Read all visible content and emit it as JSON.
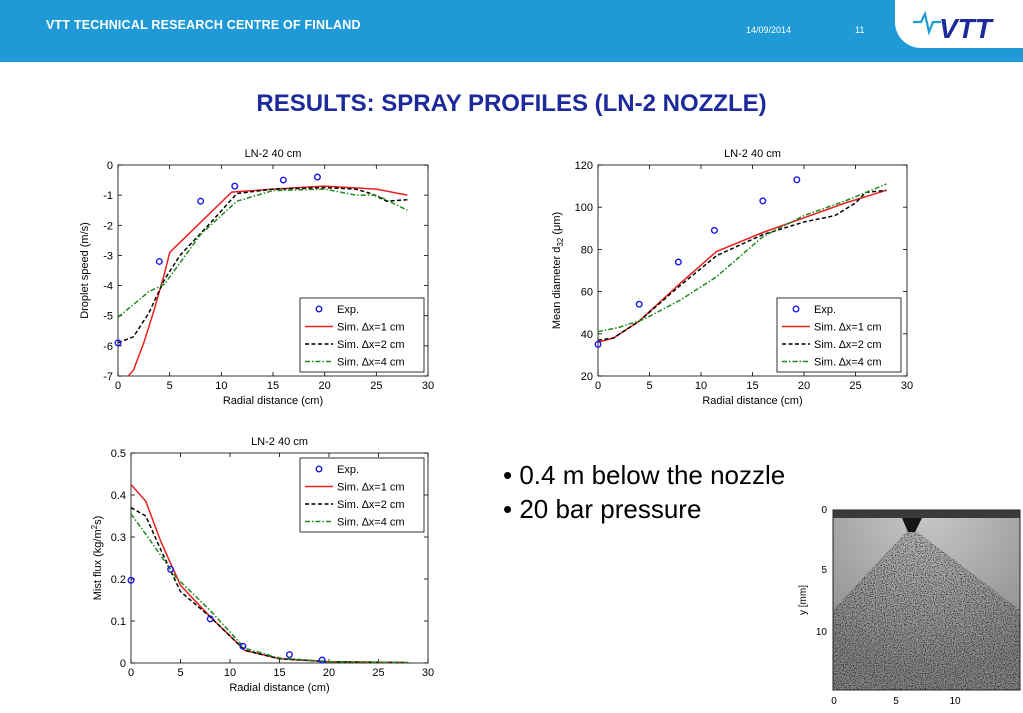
{
  "header": {
    "org": "VTT TECHNICAL RESEARCH CENTRE OF FINLAND",
    "date": "14/09/2014",
    "page": "11",
    "logo_text": "VTT",
    "colors": {
      "bar": "#1f9ad6",
      "title": "#1c2a9c"
    }
  },
  "slide_title": "RESULTS: SPRAY PROFILES (LN-2 NOZZLE)",
  "legend": {
    "exp": "Exp.",
    "sim1": "Sim. ∆x=1 cm",
    "sim2": "Sim. ∆x=2 cm",
    "sim4": "Sim. ∆x=4 cm"
  },
  "series_colors": {
    "exp": "#1a1ae6",
    "sim1": "#e8211f",
    "sim2": "#000000",
    "sim4": "#1c8a1c"
  },
  "bullets": [
    "0.4 m below the nozzle",
    "20 bar pressure"
  ],
  "chart_data": [
    {
      "type": "line",
      "title": "LN-2 40 cm",
      "xlabel": "Radial distance (cm)",
      "ylabel": "Droplet speed (m/s)",
      "xlim": [
        0,
        30
      ],
      "ylim": [
        -7,
        0
      ],
      "xticks": [
        0,
        5,
        10,
        15,
        20,
        25,
        30
      ],
      "yticks": [
        0,
        -1,
        -2,
        -3,
        -4,
        -5,
        -6,
        -7
      ],
      "legend_position": "bottom-right",
      "grid": false,
      "series": [
        {
          "name": "Exp.",
          "style": "markers",
          "x": [
            0,
            4,
            8,
            11.3,
            16,
            19.3
          ],
          "y": [
            -5.9,
            -3.2,
            -1.2,
            -0.7,
            -0.5,
            -0.4
          ]
        },
        {
          "name": "Sim. ∆x=1 cm",
          "style": "solid",
          "x": [
            1,
            1.5,
            2.5,
            3.5,
            4.5,
            5,
            11,
            15,
            20,
            25,
            28
          ],
          "y": [
            -7,
            -6.8,
            -5.9,
            -4.8,
            -3.6,
            -2.9,
            -0.9,
            -0.8,
            -0.7,
            -0.8,
            -1.0
          ]
        },
        {
          "name": "Sim. ∆x=2 cm",
          "style": "dashed",
          "x": [
            0,
            1.5,
            3,
            4.5,
            6,
            9,
            11.5,
            15,
            20,
            23,
            24.5,
            26,
            28
          ],
          "y": [
            -5.9,
            -5.7,
            -4.9,
            -3.8,
            -3.0,
            -1.9,
            -0.95,
            -0.8,
            -0.75,
            -0.8,
            -0.95,
            -1.2,
            -1.15
          ]
        },
        {
          "name": "Sim. ∆x=4 cm",
          "style": "dashdot",
          "x": [
            0,
            3,
            4.5,
            8,
            11.5,
            15,
            20,
            23,
            25,
            28
          ],
          "y": [
            -5.05,
            -4.2,
            -3.95,
            -2.3,
            -1.2,
            -0.85,
            -0.8,
            -1.0,
            -1.0,
            -1.5
          ]
        }
      ]
    },
    {
      "type": "line",
      "title": "LN-2 40 cm",
      "xlabel": "Radial distance (cm)",
      "ylabel": "Mean diameter d32 (μm)",
      "ylabel_parts": [
        "Mean diameter d",
        "32",
        " (μm)"
      ],
      "xlim": [
        0,
        30
      ],
      "ylim": [
        20,
        120
      ],
      "xticks": [
        0,
        5,
        10,
        15,
        20,
        25,
        30
      ],
      "yticks": [
        20,
        40,
        60,
        80,
        100,
        120
      ],
      "legend_position": "bottom-right",
      "grid": false,
      "series": [
        {
          "name": "Exp.",
          "style": "markers",
          "x": [
            0,
            4,
            7.8,
            11.3,
            16,
            19.3
          ],
          "y": [
            35,
            54,
            74,
            89,
            103,
            113
          ]
        },
        {
          "name": "Sim. ∆x=1 cm",
          "style": "solid",
          "x": [
            0,
            1.5,
            4,
            8,
            11.5,
            16,
            20,
            24,
            28
          ],
          "y": [
            36,
            38,
            46,
            64,
            79,
            88,
            95,
            102,
            108
          ]
        },
        {
          "name": "Sim. ∆x=2 cm",
          "style": "dashed",
          "x": [
            0,
            1.5,
            4,
            8,
            11.5,
            16,
            20,
            23,
            25,
            26,
            28
          ],
          "y": [
            37,
            38,
            46,
            63,
            77,
            87,
            93,
            96,
            102,
            107,
            108
          ]
        },
        {
          "name": "Sim. ∆x=4 cm",
          "style": "dashdot",
          "x": [
            0,
            2,
            4.5,
            8,
            11.5,
            16,
            20,
            24,
            28
          ],
          "y": [
            41,
            43,
            47,
            56,
            67,
            86,
            96,
            103,
            111
          ]
        }
      ]
    },
    {
      "type": "line",
      "title": "LN-2 40 cm",
      "xlabel": "Radial distance (cm)",
      "ylabel": "Mist flux (kg/m2s)",
      "ylabel_parts": [
        "Mist flux (kg/m",
        "2",
        "s)"
      ],
      "xlim": [
        0,
        30
      ],
      "ylim": [
        0,
        0.5
      ],
      "xticks": [
        0,
        5,
        10,
        15,
        20,
        25,
        30
      ],
      "yticks": [
        0,
        0.1,
        0.2,
        0.3,
        0.4,
        0.5
      ],
      "legend_position": "top-right",
      "grid": false,
      "series": [
        {
          "name": "Exp.",
          "style": "markers",
          "x": [
            0,
            4,
            8,
            11.3,
            16,
            19.3
          ],
          "y": [
            0.197,
            0.223,
            0.105,
            0.04,
            0.02,
            0.007
          ]
        },
        {
          "name": "Sim. ∆x=1 cm",
          "style": "solid",
          "x": [
            0,
            1.5,
            3,
            5,
            8,
            11.5,
            15,
            20,
            28
          ],
          "y": [
            0.425,
            0.385,
            0.29,
            0.185,
            0.11,
            0.03,
            0.01,
            0.003,
            0.001
          ]
        },
        {
          "name": "Sim. ∆x=2 cm",
          "style": "dashed",
          "x": [
            0,
            1.5,
            3,
            5,
            8,
            11.5,
            15,
            20,
            28
          ],
          "y": [
            0.37,
            0.35,
            0.27,
            0.17,
            0.11,
            0.03,
            0.01,
            0.003,
            0.001
          ]
        },
        {
          "name": "Sim. ∆x=4 cm",
          "style": "dashdot",
          "x": [
            0,
            2,
            4.5,
            8,
            11.5,
            15,
            20,
            28
          ],
          "y": [
            0.355,
            0.29,
            0.205,
            0.125,
            0.035,
            0.012,
            0.003,
            0.001
          ]
        }
      ]
    }
  ],
  "photo": {
    "ylabel": "y [mm]",
    "yticks": [
      "0",
      "5",
      "10"
    ],
    "xticks": [
      "0",
      "5",
      "10"
    ]
  }
}
